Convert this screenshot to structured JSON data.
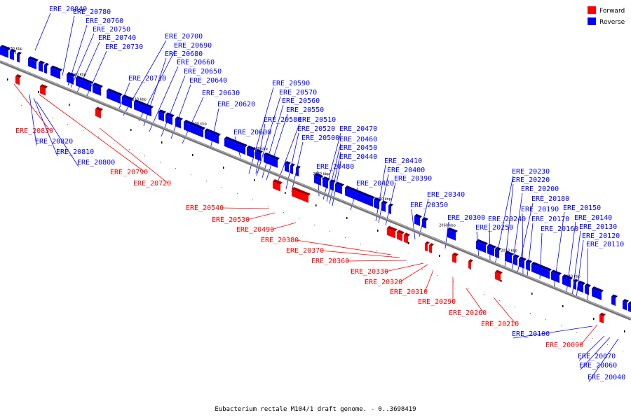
{
  "legend": {
    "forward": {
      "label": "Forward",
      "color": "#ff0000"
    },
    "reverse": {
      "label": "Reverse",
      "color": "#0000ff"
    }
  },
  "caption": "Eubacterium rectale M104/1 draft genome. - 0..3698419",
  "scale_labels": [
    "2130 kbp",
    "2120 kbp",
    "2110 kbp",
    "2100 kbp",
    "2090 kbp",
    "2080 kbp",
    "2070 kbp",
    "2060 kbp",
    "2050 kbp",
    "2040 kbp"
  ],
  "reverse_genes": [
    "ERE_20840",
    "ERE_20780",
    "ERE_20760",
    "ERE_20750",
    "ERE_20740",
    "ERE_20730",
    "ERE_20700",
    "ERE_20690",
    "ERE_20680",
    "ERE_20660",
    "ERE_20710",
    "ERE_20650",
    "ERE_20640",
    "ERE_20630",
    "ERE_20620",
    "ERE_20600",
    "ERE_20590",
    "ERE_20570",
    "ERE_20560",
    "ERE_20550",
    "ERE_20580",
    "ERE_20510",
    "ERE_20520",
    "ERE_20500",
    "ERE_20470",
    "ERE_20460",
    "ERE_20450",
    "ERE_20440",
    "ERE_20480",
    "ERE_20410",
    "ERE_20400",
    "ERE_20390",
    "ERE_20420",
    "ERE_20340",
    "ERE_20350",
    "ERE_20300",
    "ERE_20250",
    "ERE_20240",
    "ERE_20230",
    "ERE_20220",
    "ERE_20200",
    "ERE_20180",
    "ERE_20190",
    "ERE_20170",
    "ERE_20160",
    "ERE_20150",
    "ERE_20140",
    "ERE_20130",
    "ERE_20120",
    "ERE_20110",
    "ERE_20820",
    "ERE_20810",
    "ERE_20800",
    "ERE_20100",
    "ERE_20070",
    "ERE_20060",
    "ERE_20040"
  ],
  "forward_genes": [
    "ERE_20830",
    "ERE_20790",
    "ERE_20720",
    "ERE_20540",
    "ERE_20530",
    "ERE_20490",
    "ERE_20380",
    "ERE_20370",
    "ERE_20360",
    "ERE_20330",
    "ERE_20320",
    "ERE_20310",
    "ERE_20290",
    "ERE_20260",
    "ERE_20210",
    "ERE_20090"
  ]
}
